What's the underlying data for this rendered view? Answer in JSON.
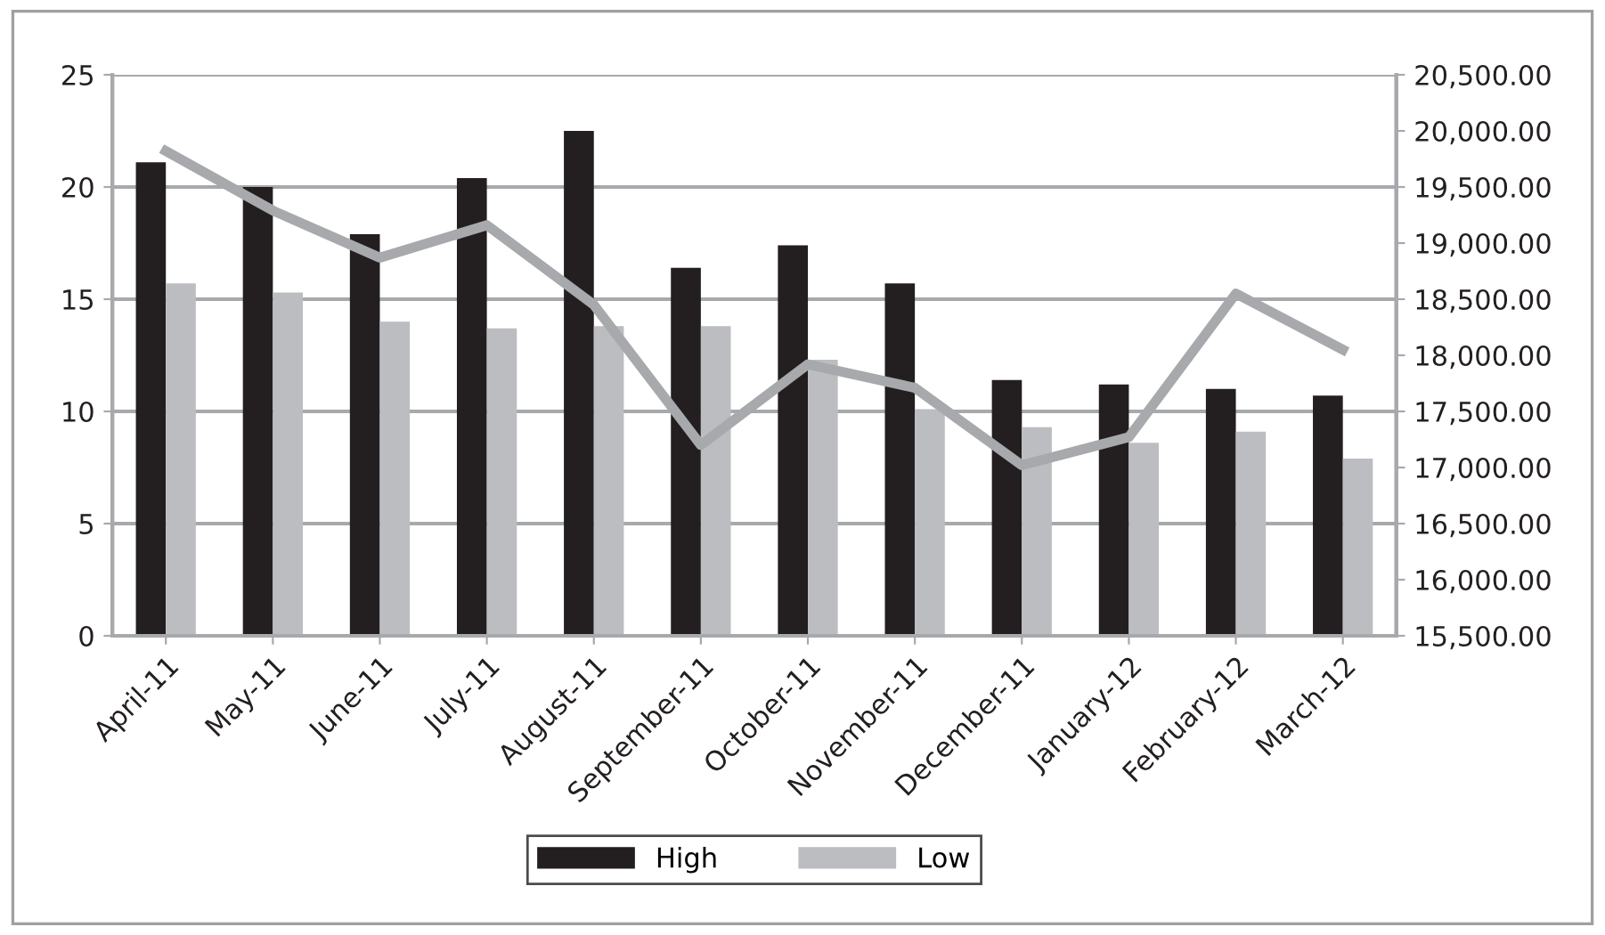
{
  "chart_data": {
    "type": "bar",
    "categories": [
      "April-11",
      "May-11",
      "June-11",
      "July-11",
      "August-11",
      "September-11",
      "October-11",
      "November-11",
      "December-11",
      "January-12",
      "February-12",
      "March-12"
    ],
    "series": [
      {
        "name": "High",
        "color": "#231f20",
        "values": [
          21.1,
          20.0,
          17.9,
          20.4,
          22.5,
          16.4,
          17.4,
          15.7,
          11.4,
          11.2,
          11.0,
          10.7
        ]
      },
      {
        "name": "Low",
        "color": "#bcbdc0",
        "values": [
          15.7,
          15.3,
          14.0,
          13.7,
          13.8,
          13.8,
          12.3,
          10.1,
          9.3,
          8.6,
          9.1,
          7.9
        ]
      },
      {
        "type": "line",
        "axis": "y2",
        "color": "#a7a9ac",
        "values": [
          19820,
          19290,
          18870,
          19160,
          18450,
          17200,
          17920,
          17710,
          17020,
          17270,
          18550,
          18050
        ]
      }
    ],
    "ylim": [
      0,
      25
    ],
    "yticks": [
      0,
      5,
      10,
      15,
      20,
      25
    ],
    "y2lim": [
      15500,
      20500
    ],
    "y2ticks": [
      {
        "value": 15500,
        "label": "15,500.00"
      },
      {
        "value": 16000,
        "label": "16,000.00"
      },
      {
        "value": 16500,
        "label": "16,500.00"
      },
      {
        "value": 17000,
        "label": "17,000.00"
      },
      {
        "value": 17500,
        "label": "17,500.00"
      },
      {
        "value": 18000,
        "label": "18,000.00"
      },
      {
        "value": 18500,
        "label": "18,500.00"
      },
      {
        "value": 19000,
        "label": "19,000.00"
      },
      {
        "value": 19500,
        "label": "19,500.00"
      },
      {
        "value": 20000,
        "label": "20,000.00"
      },
      {
        "value": 20500,
        "label": "20,500.00"
      }
    ],
    "grid": "y",
    "legend": "bottom"
  }
}
